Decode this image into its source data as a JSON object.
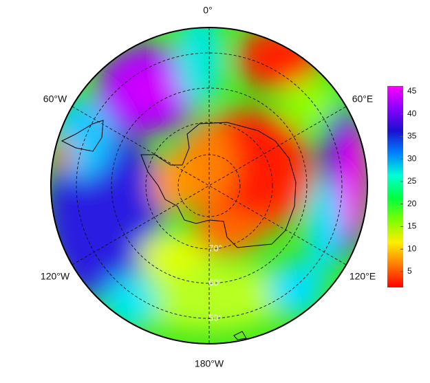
{
  "map": {
    "longitude_labels": [
      "0°",
      "60°E",
      "120°E",
      "180°W",
      "120°W",
      "60°W"
    ],
    "latitude_labels": [
      "70°",
      "60°",
      "50°"
    ],
    "colorbar": {
      "lim": [
        1.5,
        46.2
      ],
      "ticks": [
        5,
        10,
        15,
        20,
        25,
        30,
        35,
        40,
        45
      ],
      "colors": [
        "#ff0000",
        "#ff7a00",
        "#ffee00",
        "#7dff00",
        "#00ff40",
        "#00ffd5",
        "#0080ff",
        "#1a10d0",
        "#8a00ff",
        "#ff00ff"
      ]
    }
  }
}
